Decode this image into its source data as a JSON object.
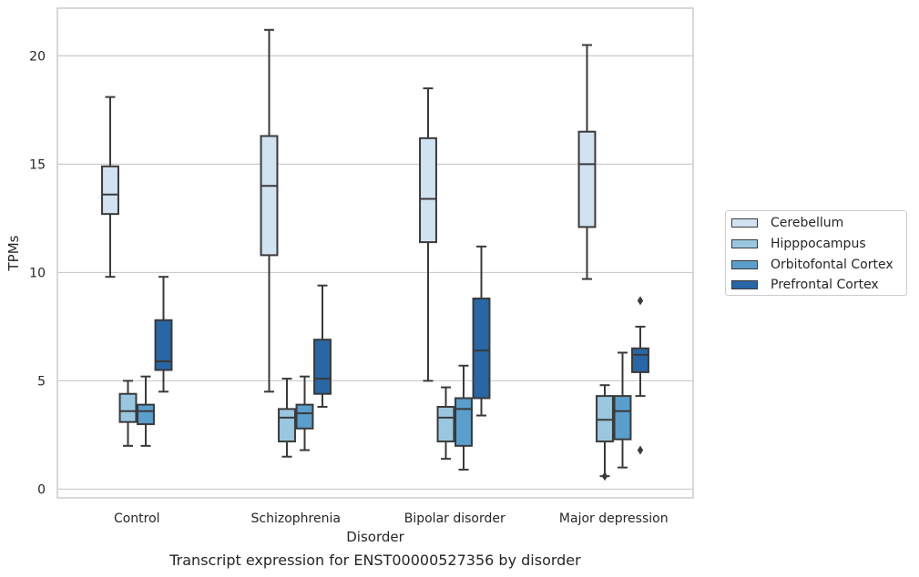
{
  "chart_data": {
    "type": "box",
    "xlabel": "Disorder",
    "ylabel": "TPMs",
    "caption": "Transcript expression for ENST00000527356 by disorder",
    "ylim": [
      -0.4,
      22.2
    ],
    "yticks": [
      0,
      5,
      10,
      15,
      20
    ],
    "ytick_labels": [
      "0",
      "5",
      "10",
      "15",
      "20"
    ],
    "grid": "horizontal",
    "legend_position": "right",
    "categories": [
      "Control",
      "Schizophrenia",
      "Bipolar disorder",
      "Major depression"
    ],
    "series": [
      {
        "name": "Cerebellum",
        "color": "#d1e2f1",
        "boxes": [
          {
            "whislo": 9.8,
            "q1": 12.7,
            "med": 13.6,
            "q3": 14.9,
            "whishi": 18.1,
            "fliers": []
          },
          {
            "whislo": 4.5,
            "q1": 10.8,
            "med": 14.0,
            "q3": 16.3,
            "whishi": 21.2,
            "fliers": []
          },
          {
            "whislo": 5.0,
            "q1": 11.4,
            "med": 13.4,
            "q3": 16.2,
            "whishi": 18.5,
            "fliers": []
          },
          {
            "whislo": 9.7,
            "q1": 12.1,
            "med": 15.0,
            "q3": 16.5,
            "whishi": 20.5,
            "fliers": []
          }
        ]
      },
      {
        "name": "Hipppocampus",
        "color": "#9ac7e0",
        "boxes": [
          {
            "whislo": 2.0,
            "q1": 3.1,
            "med": 3.6,
            "q3": 4.4,
            "whishi": 5.0,
            "fliers": []
          },
          {
            "whislo": 1.5,
            "q1": 2.2,
            "med": 3.3,
            "q3": 3.7,
            "whishi": 5.1,
            "fliers": []
          },
          {
            "whislo": 1.4,
            "q1": 2.2,
            "med": 3.3,
            "q3": 3.8,
            "whishi": 4.7,
            "fliers": []
          },
          {
            "whislo": 0.6,
            "q1": 2.2,
            "med": 3.2,
            "q3": 4.3,
            "whishi": 4.8,
            "fliers": [
              0.6
            ]
          }
        ]
      },
      {
        "name": "Orbitofontal Cortex",
        "color": "#5a9ecc",
        "boxes": [
          {
            "whislo": 2.0,
            "q1": 3.0,
            "med": 3.6,
            "q3": 3.9,
            "whishi": 5.2,
            "fliers": []
          },
          {
            "whislo": 1.8,
            "q1": 2.8,
            "med": 3.5,
            "q3": 3.9,
            "whishi": 5.2,
            "fliers": []
          },
          {
            "whislo": 0.9,
            "q1": 2.0,
            "med": 3.7,
            "q3": 4.2,
            "whishi": 5.7,
            "fliers": []
          },
          {
            "whislo": 1.0,
            "q1": 2.3,
            "med": 3.6,
            "q3": 4.3,
            "whishi": 6.3,
            "fliers": []
          }
        ]
      },
      {
        "name": "Prefrontal Cortex",
        "color": "#2866a6",
        "boxes": [
          {
            "whislo": 4.5,
            "q1": 5.5,
            "med": 5.9,
            "q3": 7.8,
            "whishi": 9.8,
            "fliers": []
          },
          {
            "whislo": 3.8,
            "q1": 4.4,
            "med": 5.1,
            "q3": 6.9,
            "whishi": 9.4,
            "fliers": []
          },
          {
            "whislo": 3.4,
            "q1": 4.2,
            "med": 6.4,
            "q3": 8.8,
            "whishi": 11.2,
            "fliers": []
          },
          {
            "whislo": 4.3,
            "q1": 5.4,
            "med": 6.2,
            "q3": 6.5,
            "whishi": 7.5,
            "fliers": [
              8.7,
              1.8
            ]
          }
        ]
      }
    ]
  }
}
